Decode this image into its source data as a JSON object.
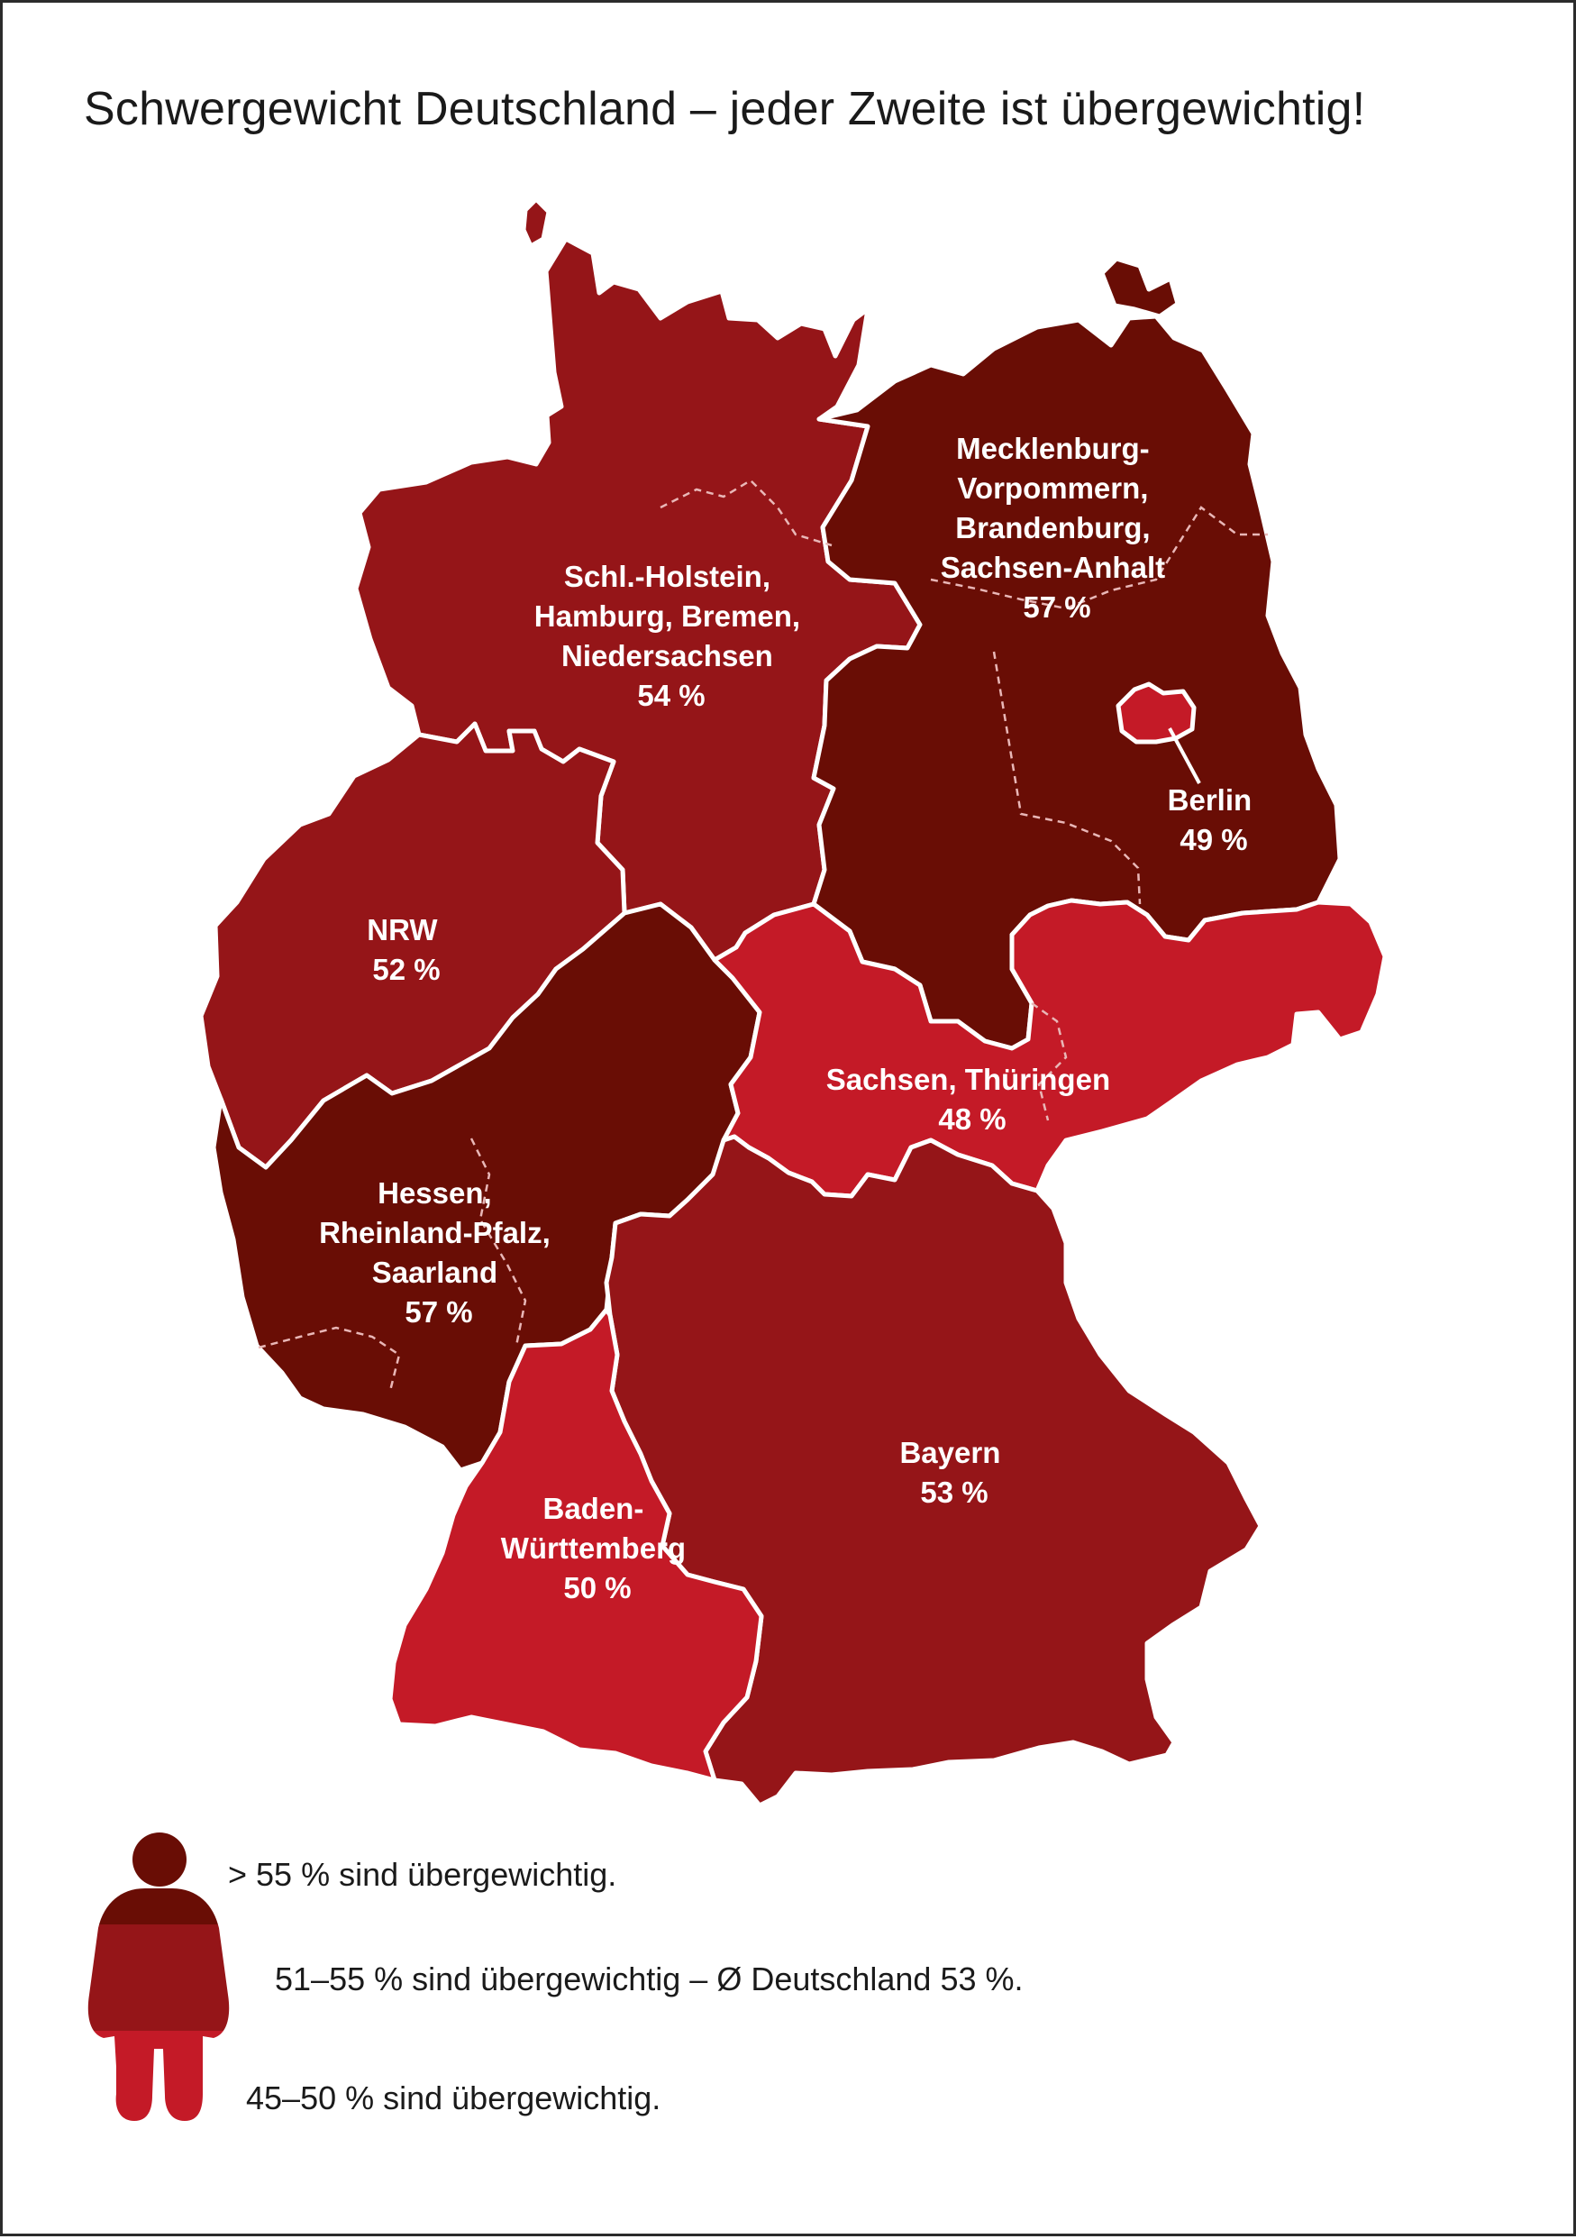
{
  "title": "Schwergewicht Deutschland – jeder Zweite ist übergewichtig!",
  "colors": {
    "high": "#690d05",
    "mid": "#951518",
    "low": "#c41a27",
    "border": "#ffffff",
    "inner_border": "#e9b7b7"
  },
  "regions": [
    {
      "id": "nord",
      "lines": [
        "Schl.-Holstein,",
        "Hamburg, Bremen,",
        "Niedersachsen"
      ],
      "value": "54 %",
      "category": "mid"
    },
    {
      "id": "ost",
      "lines": [
        "Mecklenburg-",
        "Vorpommern,",
        "Brandenburg,",
        "Sachsen-Anhalt"
      ],
      "value": "57 %",
      "category": "high"
    },
    {
      "id": "berlin",
      "lines": [
        "Berlin"
      ],
      "value": "49 %",
      "category": "low"
    },
    {
      "id": "nrw",
      "lines": [
        "NRW"
      ],
      "value": "52 %",
      "category": "mid"
    },
    {
      "id": "sachsen-thueringen",
      "lines": [
        "Sachsen, Thüringen"
      ],
      "value": "48 %",
      "category": "low"
    },
    {
      "id": "hessen-rlp-saar",
      "lines": [
        "Hessen,",
        "Rheinland-Pfalz,",
        "Saarland"
      ],
      "value": "57 %",
      "category": "high"
    },
    {
      "id": "bayern",
      "lines": [
        "Bayern"
      ],
      "value": "53 %",
      "category": "mid"
    },
    {
      "id": "bawue",
      "lines": [
        "Baden-",
        "Württemberg"
      ],
      "value": "50 %",
      "category": "low"
    }
  ],
  "legend": [
    {
      "category": "high",
      "text": "> 55 % sind übergewichtig."
    },
    {
      "category": "mid",
      "text": "51–55 % sind übergewichtig – Ø Deutschland 53 %."
    },
    {
      "category": "low",
      "text": "45–50 % sind übergewichtig."
    }
  ]
}
